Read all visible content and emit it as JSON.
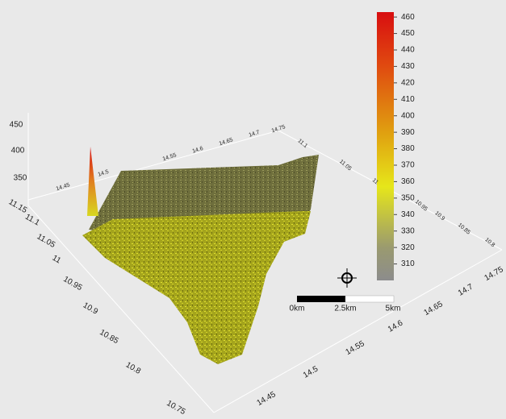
{
  "colorbar": {
    "range": [
      300,
      463
    ],
    "ticks": [
      460,
      450,
      440,
      430,
      420,
      410,
      400,
      390,
      380,
      370,
      360,
      350,
      340,
      330,
      320,
      310
    ]
  },
  "z_axis": {
    "ticks": [
      450,
      400,
      350
    ]
  },
  "lat_axis": {
    "ticks": [
      11.15,
      11.1,
      11.05,
      11,
      10.95,
      10.9,
      10.85,
      10.8,
      10.75
    ]
  },
  "lon_axis": {
    "ticks": [
      14.45,
      14.5,
      14.55,
      14.6,
      14.65,
      14.7,
      14.75
    ]
  },
  "lon_back_axis": {
    "ticks": [
      14.45,
      14.5,
      14.55,
      14.6,
      14.65,
      14.7,
      14.75
    ]
  },
  "lat_back_axis": {
    "ticks": [
      11.1,
      11.05,
      11,
      10.95,
      10.9,
      10.85,
      10.8
    ]
  },
  "scale_bar": {
    "labels": [
      "0km",
      "2.5km",
      "5km"
    ]
  }
}
